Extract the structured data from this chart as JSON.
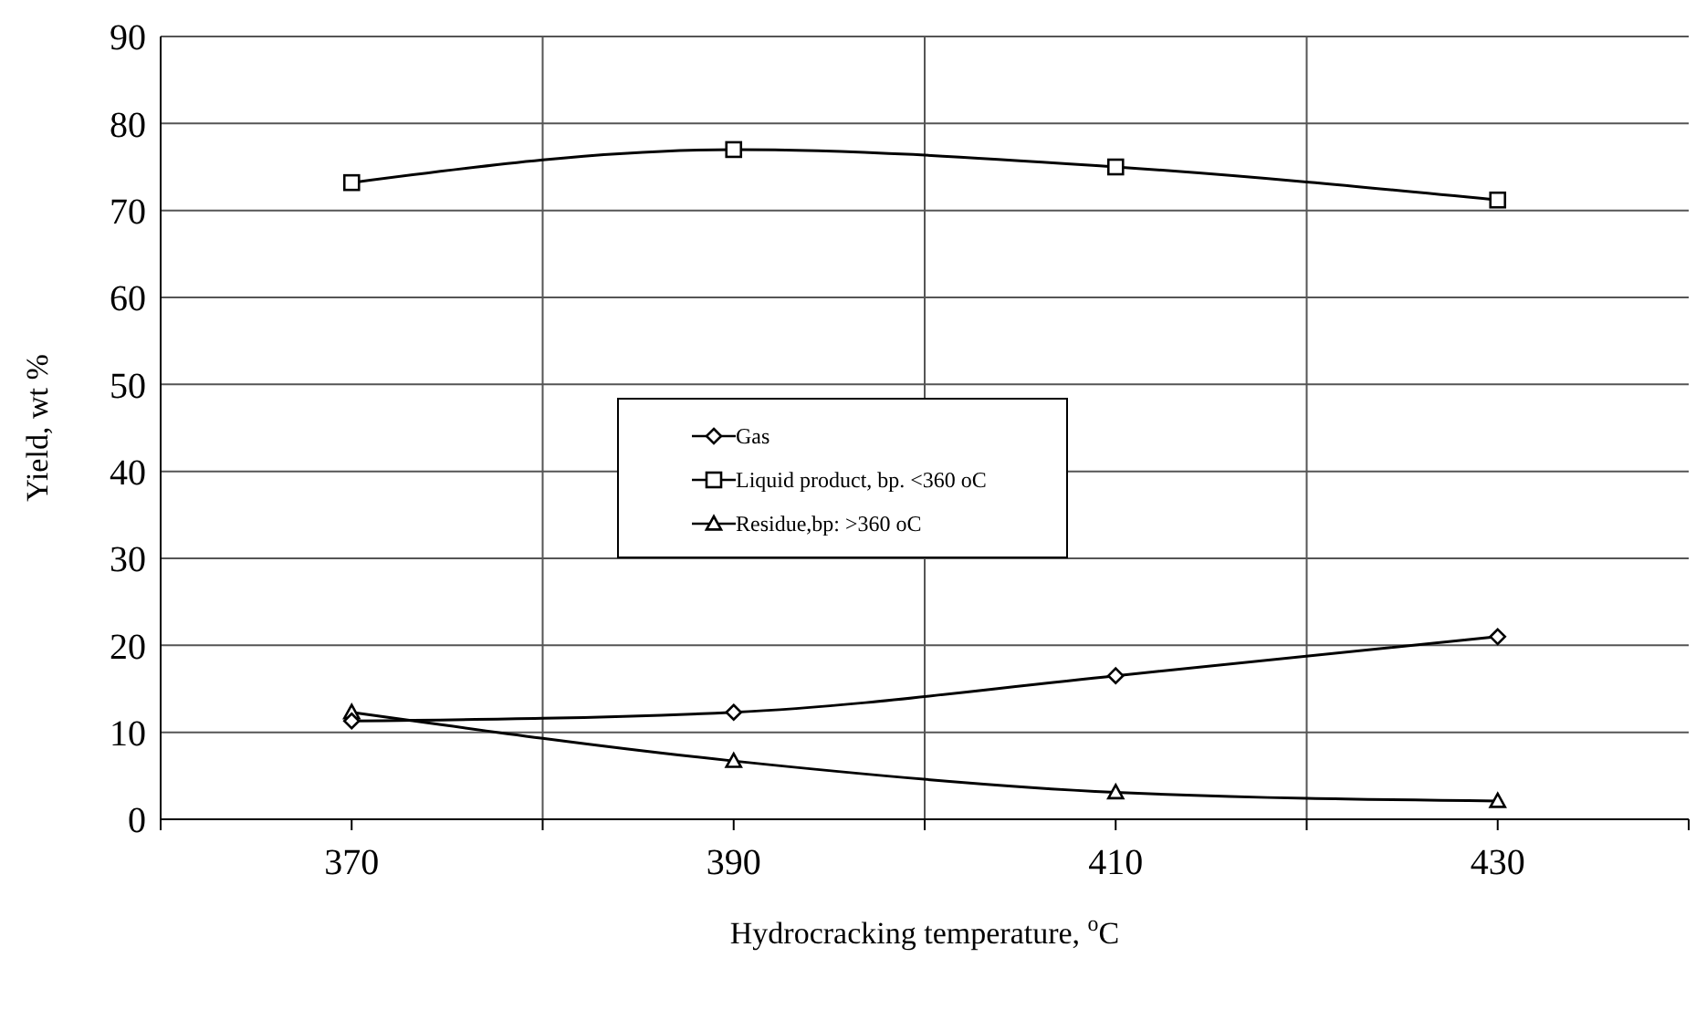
{
  "chart_data": {
    "type": "line",
    "xlabel": "Hydrocracking temperature, $^{o}$C",
    "ylabel": "Yield, wt %",
    "x": [
      370,
      390,
      410,
      430
    ],
    "series": [
      {
        "name": "Gas",
        "color": "#000000",
        "marker": "diamond",
        "values": [
          11.3,
          12.3,
          16.5,
          21
        ]
      },
      {
        "name": "Liquid product, bp. <360 oC",
        "color": "#000000",
        "marker": "square",
        "values": [
          73.2,
          77,
          75,
          71.2
        ]
      },
      {
        "name": "Residue,bp:  >360 oC",
        "color": "#000000",
        "marker": "triangle",
        "values": [
          12.3,
          6.7,
          3.1,
          2.1
        ]
      }
    ],
    "xlim": [
      360,
      440
    ],
    "xticks": [
      {
        "value": 360,
        "label": null
      },
      370,
      {
        "value": 380,
        "label": null
      },
      390,
      {
        "value": 400,
        "label": null
      },
      410,
      {
        "value": 420,
        "label": null
      },
      430,
      {
        "value": 440,
        "label": null
      }
    ],
    "ylim": [
      0,
      90
    ],
    "yticks": [
      0,
      10,
      20,
      30,
      40,
      50,
      60,
      70,
      80,
      90
    ],
    "grid": true,
    "legend": "left",
    "line_style": "solid"
  }
}
